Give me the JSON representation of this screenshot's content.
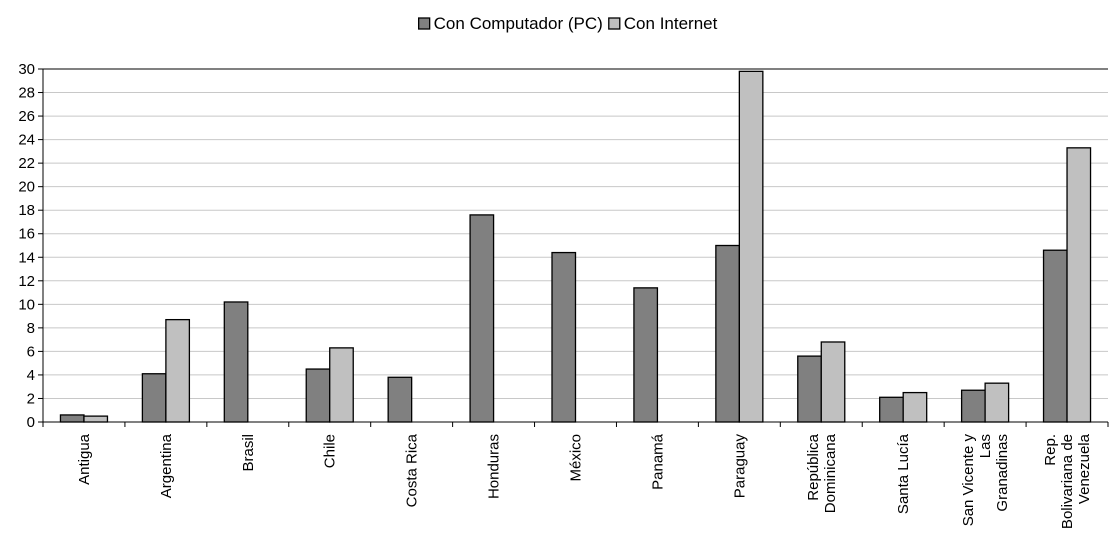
{
  "chart_data": {
    "type": "bar",
    "title": "",
    "xlabel": "",
    "ylabel": "",
    "ylim": [
      0,
      30
    ],
    "yticks": [
      0,
      2,
      4,
      6,
      8,
      10,
      12,
      14,
      16,
      18,
      20,
      22,
      24,
      26,
      28,
      30
    ],
    "grid": true,
    "legend_position": "top-center",
    "categories": [
      [
        "Antigua"
      ],
      [
        "Argentina"
      ],
      [
        "Brasil"
      ],
      [
        "Chile"
      ],
      [
        "Costa Rica"
      ],
      [
        "Honduras"
      ],
      [
        "México"
      ],
      [
        "Panamá"
      ],
      [
        "Paraguay"
      ],
      [
        "República",
        "Dominicana"
      ],
      [
        "Santa Lucía"
      ],
      [
        "San Vicente y",
        "Las",
        "Granadinas"
      ],
      [
        "Rep.",
        "Bolivariana de",
        "Venezuela"
      ]
    ],
    "series": [
      {
        "name": "Con Computador (PC)",
        "color": "#808080",
        "values": [
          0.6,
          4.1,
          10.2,
          4.5,
          3.8,
          17.6,
          14.4,
          11.4,
          15.0,
          5.6,
          2.1,
          2.7,
          14.6
        ]
      },
      {
        "name": "Con Internet",
        "color": "#c0c0c0",
        "values": [
          0.5,
          8.7,
          null,
          6.3,
          null,
          null,
          null,
          null,
          29.8,
          6.8,
          2.5,
          3.3,
          23.3
        ]
      }
    ]
  }
}
